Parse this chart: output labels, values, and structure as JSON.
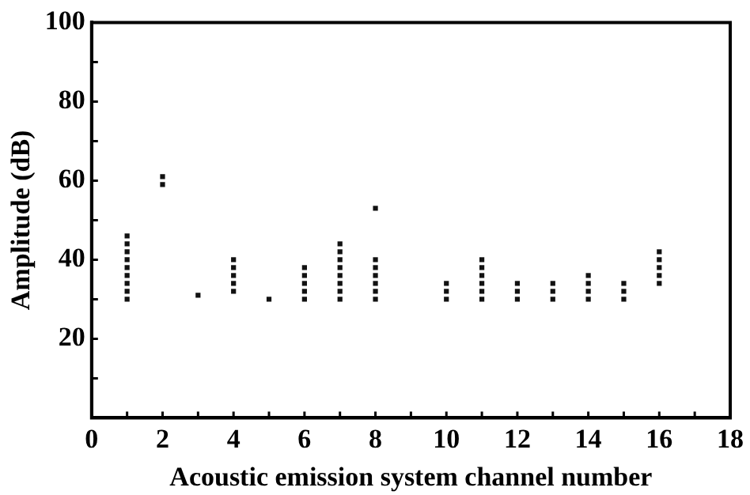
{
  "chart_data": {
    "type": "scatter",
    "xlabel": "Acoustic emission system channel number",
    "ylabel": "Amplitude (dB)",
    "x": [
      1,
      1,
      1,
      1,
      1,
      1,
      1,
      1,
      1,
      2,
      2,
      3,
      4,
      4,
      4,
      4,
      4,
      5,
      6,
      6,
      6,
      6,
      6,
      7,
      7,
      7,
      7,
      7,
      7,
      7,
      7,
      8,
      8,
      8,
      8,
      8,
      8,
      8,
      10,
      10,
      10,
      11,
      11,
      11,
      11,
      11,
      11,
      12,
      12,
      12,
      13,
      13,
      13,
      14,
      14,
      14,
      14,
      15,
      15,
      15,
      16,
      16,
      16,
      16,
      16
    ],
    "values": [
      30,
      32,
      34,
      36,
      38,
      40,
      42,
      44,
      46,
      59,
      61,
      31,
      32,
      34,
      36,
      38,
      40,
      30,
      30,
      32,
      34,
      36,
      38,
      30,
      32,
      34,
      36,
      38,
      40,
      42,
      44,
      30,
      32,
      34,
      36,
      38,
      40,
      53,
      30,
      32,
      34,
      30,
      32,
      34,
      36,
      38,
      40,
      30,
      32,
      34,
      30,
      32,
      34,
      30,
      32,
      34,
      36,
      30,
      32,
      34,
      34,
      36,
      38,
      40,
      42
    ],
    "color": "#111111",
    "marker": "square",
    "grid": false,
    "xlim": [
      0,
      18
    ],
    "xticks": [
      0,
      {
        "value": 1,
        "label": null
      },
      2,
      {
        "value": 3,
        "label": null
      },
      4,
      {
        "value": 5,
        "label": null
      },
      6,
      {
        "value": 7,
        "label": null
      },
      8,
      {
        "value": 9,
        "label": null
      },
      10,
      {
        "value": 11,
        "label": null
      },
      12,
      {
        "value": 13,
        "label": null
      },
      14,
      {
        "value": 15,
        "label": null
      },
      16,
      {
        "value": 17,
        "label": null
      },
      18
    ],
    "ylim": [
      0,
      100
    ],
    "yticks": [
      {
        "value": 0,
        "label": null
      },
      {
        "value": 10,
        "label": null
      },
      20,
      {
        "value": 30,
        "label": null
      },
      40,
      {
        "value": 50,
        "label": null
      },
      60,
      {
        "value": 70,
        "label": null
      },
      80,
      {
        "value": 90,
        "label": null
      },
      100
    ]
  }
}
